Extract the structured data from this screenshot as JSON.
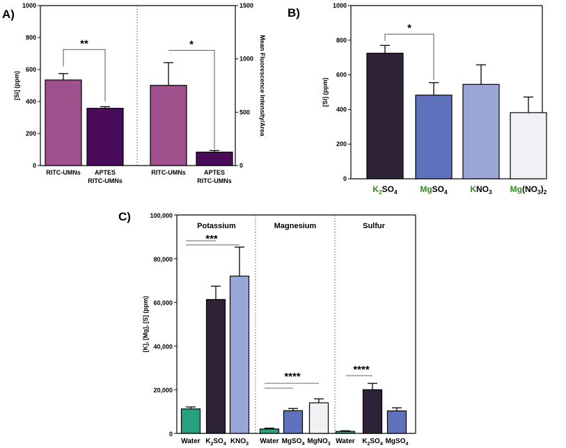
{
  "chart_data": [
    {
      "panel": "A)",
      "type": "bar",
      "ylabel_left": "[Si] (ppm)",
      "ylabel_right": "Mean Fluorescence Intensity/Area",
      "ylim_left": [
        0,
        1000
      ],
      "yticks_left": [
        "0",
        "200",
        "400",
        "600",
        "800",
        "1000"
      ],
      "ylim_right": [
        0,
        1500
      ],
      "yticks_right": [
        "0",
        "500",
        "1000",
        "1500"
      ],
      "bars": [
        {
          "label": [
            "RITC-UMNs"
          ],
          "value": 535,
          "error": 40,
          "axis": "left",
          "color": "#a0508c"
        },
        {
          "label": [
            "APTES",
            "RITC-UMNs"
          ],
          "value": 358,
          "error": 10,
          "axis": "left",
          "color": "#4a0b5a"
        },
        {
          "label": [
            "RITC-UMNs"
          ],
          "value": 752,
          "error": 213,
          "axis": "right",
          "color": "#a0508c"
        },
        {
          "label": [
            "APTES",
            "RITC-UMNs"
          ],
          "value": 126,
          "error": 15,
          "axis": "right",
          "color": "#4a0b5a"
        }
      ],
      "significance": [
        {
          "from": 0,
          "to": 1,
          "text": "**"
        },
        {
          "from": 2,
          "to": 3,
          "text": "*"
        }
      ]
    },
    {
      "panel": "B)",
      "type": "bar",
      "ylabel": "[Si] (ppm)",
      "ylim": [
        0,
        1000
      ],
      "yticks": [
        "0",
        "200",
        "400",
        "600",
        "800",
        "1000"
      ],
      "bars": [
        {
          "label": [
            [
              "K",
              "green"
            ],
            [
              "2",
              "green-sub"
            ],
            [
              "SO",
              "black"
            ],
            [
              "4",
              "sub"
            ]
          ],
          "value": 725,
          "error": 45,
          "color": "#2e2238"
        },
        {
          "label": [
            [
              "Mg",
              "green"
            ],
            [
              "SO",
              "black"
            ],
            [
              "4",
              "sub"
            ]
          ],
          "value": 483,
          "error": 72,
          "color": "#5e71bd"
        },
        {
          "label": [
            [
              "K",
              "green"
            ],
            [
              "NO",
              "black"
            ],
            [
              "3",
              "sub"
            ]
          ],
          "value": 545,
          "error": 113,
          "color": "#9aa6d7"
        },
        {
          "label": [
            [
              "Mg",
              "green"
            ],
            [
              "(NO",
              "black"
            ],
            [
              "3",
              "sub"
            ],
            [
              ")",
              "black"
            ],
            [
              "2",
              "sub"
            ]
          ],
          "value": 382,
          "error": 90,
          "color": "#eff1f4"
        }
      ],
      "significance": [
        {
          "from": 0,
          "to": 1,
          "text": "*"
        }
      ]
    },
    {
      "panel": "C)",
      "type": "bar",
      "ylabel": "[K], [Mg], [S] (ppm)",
      "ylim": [
        0,
        100000
      ],
      "yticks": [
        "0",
        "20,000",
        "40,000",
        "60,000",
        "80,000",
        "100,000"
      ],
      "groups": [
        {
          "name": "Potassium",
          "bars": [
            {
              "label": [
                [
                  "Water",
                  "black"
                ]
              ],
              "value": 11200,
              "error": 900,
              "color": "#27a07f"
            },
            {
              "label": [
                [
                  "K",
                  "black"
                ],
                [
                  "2",
                  "sub"
                ],
                [
                  "SO",
                  "black"
                ],
                [
                  "4",
                  "sub"
                ]
              ],
              "value": 61300,
              "error": 6100,
              "color": "#2e2238"
            },
            {
              "label": [
                [
                  "KNO",
                  "black"
                ],
                [
                  "3",
                  "sub"
                ]
              ],
              "value": 72000,
              "error": 13300,
              "color": "#9aa6d7"
            }
          ],
          "significance_text": "***"
        },
        {
          "name": "Magnesium",
          "bars": [
            {
              "label": [
                [
                  "Water",
                  "black"
                ]
              ],
              "value": 2000,
              "error": 400,
              "color": "#27a07f"
            },
            {
              "label": [
                [
                  "MgSO",
                  "black"
                ],
                [
                  "4",
                  "sub"
                ]
              ],
              "value": 10400,
              "error": 1000,
              "color": "#5e71bd"
            },
            {
              "label": [
                [
                  "MgNO",
                  "black"
                ],
                [
                  "3",
                  "sub"
                ]
              ],
              "value": 14000,
              "error": 1800,
              "color": "#eff1f4"
            }
          ],
          "significance_text": "****"
        },
        {
          "name": "Sulfur",
          "bars": [
            {
              "label": [
                [
                  "Water",
                  "black"
                ]
              ],
              "value": 900,
              "error": 300,
              "color": "#27a07f"
            },
            {
              "label": [
                [
                  "K",
                  "black"
                ],
                [
                  "2",
                  "sub"
                ],
                [
                  "SO",
                  "black"
                ],
                [
                  "4",
                  "sub"
                ]
              ],
              "value": 20000,
              "error": 2900,
              "color": "#2e2238"
            },
            {
              "label": [
                [
                  "MgSO",
                  "black"
                ],
                [
                  "4",
                  "sub"
                ]
              ],
              "value": 10300,
              "error": 1400,
              "color": "#5e71bd"
            }
          ],
          "significance_text": "****"
        }
      ]
    }
  ],
  "colors": {
    "green_text": "#2e8b1e",
    "axis": "#000000",
    "divider": "#555555"
  }
}
